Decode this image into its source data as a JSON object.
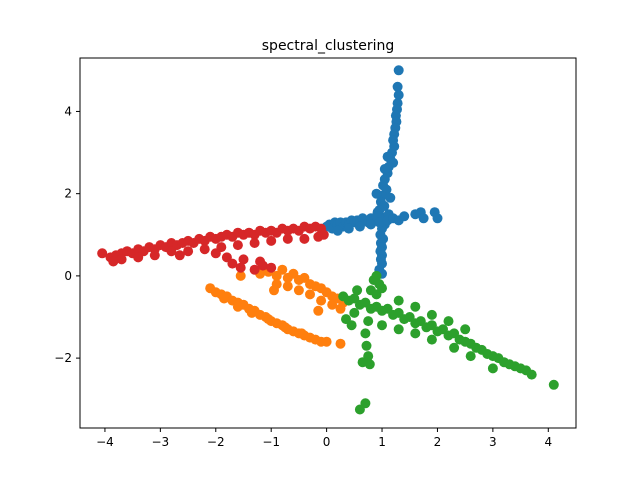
{
  "chart_data": {
    "type": "scatter",
    "title": "spectral_clustering",
    "xlabel": "",
    "ylabel": "",
    "xlim": [
      -4.45,
      4.5
    ],
    "ylim": [
      -3.7,
      5.3
    ],
    "xticks": [
      -4,
      -3,
      -2,
      -1,
      0,
      1,
      2,
      3,
      4
    ],
    "yticks": [
      -2,
      0,
      2,
      4
    ],
    "grid": false,
    "legend": "none",
    "series": [
      {
        "color": "#1f77b4",
        "points": [
          [
            1.3,
            5.0
          ],
          [
            1.28,
            4.6
          ],
          [
            1.3,
            4.4
          ],
          [
            1.28,
            4.2
          ],
          [
            1.27,
            4.05
          ],
          [
            1.25,
            3.9
          ],
          [
            1.26,
            3.75
          ],
          [
            1.24,
            3.6
          ],
          [
            1.22,
            3.45
          ],
          [
            1.2,
            3.3
          ],
          [
            1.22,
            3.15
          ],
          [
            1.18,
            3.0
          ],
          [
            1.15,
            2.85
          ],
          [
            1.2,
            2.75
          ],
          [
            1.12,
            2.65
          ],
          [
            1.1,
            2.5
          ],
          [
            1.05,
            2.35
          ],
          [
            1.02,
            2.2
          ],
          [
            1.08,
            2.1
          ],
          [
            1.0,
            1.95
          ],
          [
            0.98,
            1.8
          ],
          [
            1.04,
            1.7
          ],
          [
            0.95,
            1.6
          ],
          [
            0.97,
            1.45
          ],
          [
            1.0,
            1.35
          ],
          [
            1.05,
            1.25
          ],
          [
            1.0,
            1.15
          ],
          [
            0.97,
            1.0
          ],
          [
            1.02,
            0.9
          ],
          [
            0.98,
            0.8
          ],
          [
            1.0,
            0.7
          ],
          [
            0.97,
            0.6
          ],
          [
            1.0,
            0.5
          ],
          [
            0.98,
            0.4
          ],
          [
            1.0,
            0.3
          ],
          [
            0.95,
            0.15
          ],
          [
            1.0,
            0.05
          ],
          [
            1.1,
            2.9
          ],
          [
            1.05,
            2.6
          ],
          [
            0.9,
            2.0
          ],
          [
            1.15,
            1.9
          ],
          [
            0.92,
            1.55
          ],
          [
            1.12,
            1.5
          ],
          [
            0.95,
            1.4
          ],
          [
            0.0,
            1.2
          ],
          [
            0.05,
            1.25
          ],
          [
            0.1,
            1.15
          ],
          [
            0.15,
            1.3
          ],
          [
            0.2,
            1.25
          ],
          [
            0.25,
            1.3
          ],
          [
            0.3,
            1.2
          ],
          [
            0.35,
            1.3
          ],
          [
            0.4,
            1.25
          ],
          [
            0.45,
            1.35
          ],
          [
            0.5,
            1.3
          ],
          [
            0.55,
            1.35
          ],
          [
            0.6,
            1.3
          ],
          [
            0.65,
            1.4
          ],
          [
            0.7,
            1.35
          ],
          [
            0.75,
            1.3
          ],
          [
            0.8,
            1.4
          ],
          [
            0.85,
            1.35
          ],
          [
            0.9,
            1.45
          ],
          [
            0.95,
            1.3
          ],
          [
            1.1,
            1.35
          ],
          [
            1.2,
            1.4
          ],
          [
            1.3,
            1.35
          ],
          [
            1.4,
            1.45
          ],
          [
            1.6,
            1.5
          ],
          [
            1.7,
            1.55
          ],
          [
            1.75,
            1.4
          ],
          [
            1.95,
            1.55
          ],
          [
            2.0,
            1.4
          ],
          [
            0.2,
            1.1
          ],
          [
            0.4,
            1.15
          ],
          [
            0.6,
            1.2
          ],
          [
            0.8,
            1.25
          ]
        ]
      },
      {
        "color": "#ff7f0e",
        "points": [
          [
            -2.1,
            -0.3
          ],
          [
            -2.0,
            -0.4
          ],
          [
            -1.9,
            -0.45
          ],
          [
            -1.8,
            -0.5
          ],
          [
            -1.7,
            -0.6
          ],
          [
            -1.6,
            -0.65
          ],
          [
            -1.5,
            -0.7
          ],
          [
            -1.4,
            -0.8
          ],
          [
            -1.3,
            -0.85
          ],
          [
            -1.2,
            -0.95
          ],
          [
            -1.1,
            -1.0
          ],
          [
            -1.0,
            -1.1
          ],
          [
            -0.9,
            -1.15
          ],
          [
            -0.8,
            -1.2
          ],
          [
            -0.7,
            -1.3
          ],
          [
            -0.6,
            -1.35
          ],
          [
            -0.5,
            -1.4
          ],
          [
            -0.4,
            -1.45
          ],
          [
            -0.3,
            -1.5
          ],
          [
            -0.2,
            -1.55
          ],
          [
            -0.1,
            -1.6
          ],
          [
            0.0,
            -1.6
          ],
          [
            0.25,
            -1.65
          ],
          [
            -1.85,
            -0.55
          ],
          [
            -1.6,
            -0.75
          ],
          [
            -1.35,
            -0.9
          ],
          [
            -1.05,
            -1.05
          ],
          [
            -0.75,
            -1.25
          ],
          [
            -0.45,
            -1.4
          ],
          [
            -1.2,
            0.05
          ],
          [
            -1.05,
            0.1
          ],
          [
            -0.9,
            0.0
          ],
          [
            -0.8,
            0.15
          ],
          [
            -0.7,
            -0.05
          ],
          [
            -0.6,
            0.05
          ],
          [
            -0.5,
            -0.1
          ],
          [
            -0.4,
            -0.05
          ],
          [
            -0.3,
            -0.2
          ],
          [
            -0.2,
            -0.25
          ],
          [
            -0.1,
            -0.3
          ],
          [
            0.0,
            -0.4
          ],
          [
            0.1,
            -0.5
          ],
          [
            0.2,
            -0.55
          ],
          [
            0.3,
            -0.65
          ],
          [
            0.25,
            -0.8
          ],
          [
            -0.9,
            -0.2
          ],
          [
            -0.7,
            -0.25
          ],
          [
            -0.5,
            -0.35
          ],
          [
            -0.3,
            -0.45
          ],
          [
            -0.1,
            -0.6
          ],
          [
            0.1,
            -0.7
          ],
          [
            -1.55,
            0.0
          ],
          [
            -0.95,
            -0.35
          ],
          [
            -0.15,
            -0.85
          ]
        ]
      },
      {
        "color": "#2ca02c",
        "points": [
          [
            0.9,
            0.0
          ],
          [
            0.85,
            -0.1
          ],
          [
            0.95,
            -0.2
          ],
          [
            1.0,
            -0.3
          ],
          [
            0.8,
            -0.35
          ],
          [
            0.9,
            -0.45
          ],
          [
            0.3,
            -0.5
          ],
          [
            0.4,
            -0.6
          ],
          [
            0.5,
            -0.55
          ],
          [
            0.6,
            -0.7
          ],
          [
            0.7,
            -0.65
          ],
          [
            0.8,
            -0.8
          ],
          [
            0.9,
            -0.75
          ],
          [
            1.0,
            -0.85
          ],
          [
            1.1,
            -0.8
          ],
          [
            1.2,
            -0.95
          ],
          [
            1.3,
            -0.9
          ],
          [
            1.4,
            -1.05
          ],
          [
            1.5,
            -1.0
          ],
          [
            1.6,
            -1.15
          ],
          [
            1.7,
            -1.1
          ],
          [
            1.8,
            -1.25
          ],
          [
            1.9,
            -1.2
          ],
          [
            2.0,
            -1.35
          ],
          [
            2.1,
            -1.3
          ],
          [
            2.2,
            -1.45
          ],
          [
            2.3,
            -1.4
          ],
          [
            2.4,
            -1.55
          ],
          [
            2.5,
            -1.6
          ],
          [
            2.6,
            -1.65
          ],
          [
            2.7,
            -1.75
          ],
          [
            2.8,
            -1.8
          ],
          [
            2.9,
            -1.9
          ],
          [
            3.0,
            -1.95
          ],
          [
            3.1,
            -2.0
          ],
          [
            3.2,
            -2.1
          ],
          [
            3.3,
            -2.15
          ],
          [
            3.4,
            -2.2
          ],
          [
            3.5,
            -2.25
          ],
          [
            3.6,
            -2.3
          ],
          [
            3.7,
            -2.4
          ],
          [
            4.1,
            -2.65
          ],
          [
            0.75,
            -1.1
          ],
          [
            0.7,
            -1.4
          ],
          [
            0.72,
            -1.7
          ],
          [
            0.75,
            -1.95
          ],
          [
            0.78,
            -2.15
          ],
          [
            0.65,
            -2.1
          ],
          [
            0.7,
            -3.1
          ],
          [
            0.6,
            -3.25
          ],
          [
            0.5,
            -0.9
          ],
          [
            0.35,
            -1.05
          ],
          [
            1.3,
            -0.6
          ],
          [
            1.6,
            -0.75
          ],
          [
            1.9,
            -0.95
          ],
          [
            2.2,
            -1.1
          ],
          [
            2.5,
            -1.3
          ],
          [
            2.3,
            -1.75
          ],
          [
            2.6,
            -1.95
          ],
          [
            3.0,
            -2.25
          ],
          [
            1.0,
            -1.2
          ],
          [
            1.3,
            -1.3
          ],
          [
            1.6,
            -1.4
          ],
          [
            1.9,
            -1.55
          ],
          [
            0.55,
            -0.35
          ],
          [
            0.45,
            -1.2
          ]
        ]
      },
      {
        "color": "#d62728",
        "points": [
          [
            -4.05,
            0.55
          ],
          [
            -3.9,
            0.45
          ],
          [
            -3.8,
            0.5
          ],
          [
            -3.7,
            0.55
          ],
          [
            -3.6,
            0.6
          ],
          [
            -3.5,
            0.55
          ],
          [
            -3.4,
            0.65
          ],
          [
            -3.3,
            0.6
          ],
          [
            -3.2,
            0.7
          ],
          [
            -3.1,
            0.65
          ],
          [
            -3.0,
            0.75
          ],
          [
            -2.9,
            0.7
          ],
          [
            -2.8,
            0.8
          ],
          [
            -2.7,
            0.75
          ],
          [
            -2.6,
            0.8
          ],
          [
            -2.5,
            0.85
          ],
          [
            -2.4,
            0.8
          ],
          [
            -2.3,
            0.9
          ],
          [
            -2.2,
            0.85
          ],
          [
            -2.1,
            0.95
          ],
          [
            -2.0,
            0.9
          ],
          [
            -1.9,
            0.95
          ],
          [
            -1.8,
            1.0
          ],
          [
            -1.7,
            0.95
          ],
          [
            -1.6,
            1.05
          ],
          [
            -1.5,
            1.0
          ],
          [
            -1.4,
            1.05
          ],
          [
            -1.3,
            1.0
          ],
          [
            -1.2,
            1.1
          ],
          [
            -1.1,
            1.05
          ],
          [
            -1.0,
            1.1
          ],
          [
            -0.9,
            1.05
          ],
          [
            -0.8,
            1.15
          ],
          [
            -0.7,
            1.1
          ],
          [
            -0.6,
            1.15
          ],
          [
            -0.5,
            1.1
          ],
          [
            -0.4,
            1.2
          ],
          [
            -0.3,
            1.15
          ],
          [
            -0.2,
            1.2
          ],
          [
            -0.1,
            1.15
          ],
          [
            -0.05,
            1.0
          ],
          [
            -0.15,
            0.95
          ],
          [
            -0.4,
            0.9
          ],
          [
            -0.7,
            0.9
          ],
          [
            -1.0,
            0.85
          ],
          [
            -1.3,
            0.8
          ],
          [
            -1.6,
            0.75
          ],
          [
            -1.9,
            0.7
          ],
          [
            -2.2,
            0.65
          ],
          [
            -2.5,
            0.6
          ],
          [
            -2.8,
            0.6
          ],
          [
            -3.1,
            0.5
          ],
          [
            -3.4,
            0.45
          ],
          [
            -3.7,
            0.4
          ],
          [
            -1.8,
            0.45
          ],
          [
            -1.7,
            0.3
          ],
          [
            -1.55,
            0.2
          ],
          [
            -1.3,
            0.15
          ],
          [
            -1.15,
            0.25
          ],
          [
            -1.0,
            0.2
          ],
          [
            -2.0,
            0.55
          ],
          [
            -1.5,
            0.4
          ],
          [
            -1.2,
            0.35
          ],
          [
            -3.85,
            0.35
          ],
          [
            -2.65,
            0.5
          ]
        ]
      }
    ]
  }
}
